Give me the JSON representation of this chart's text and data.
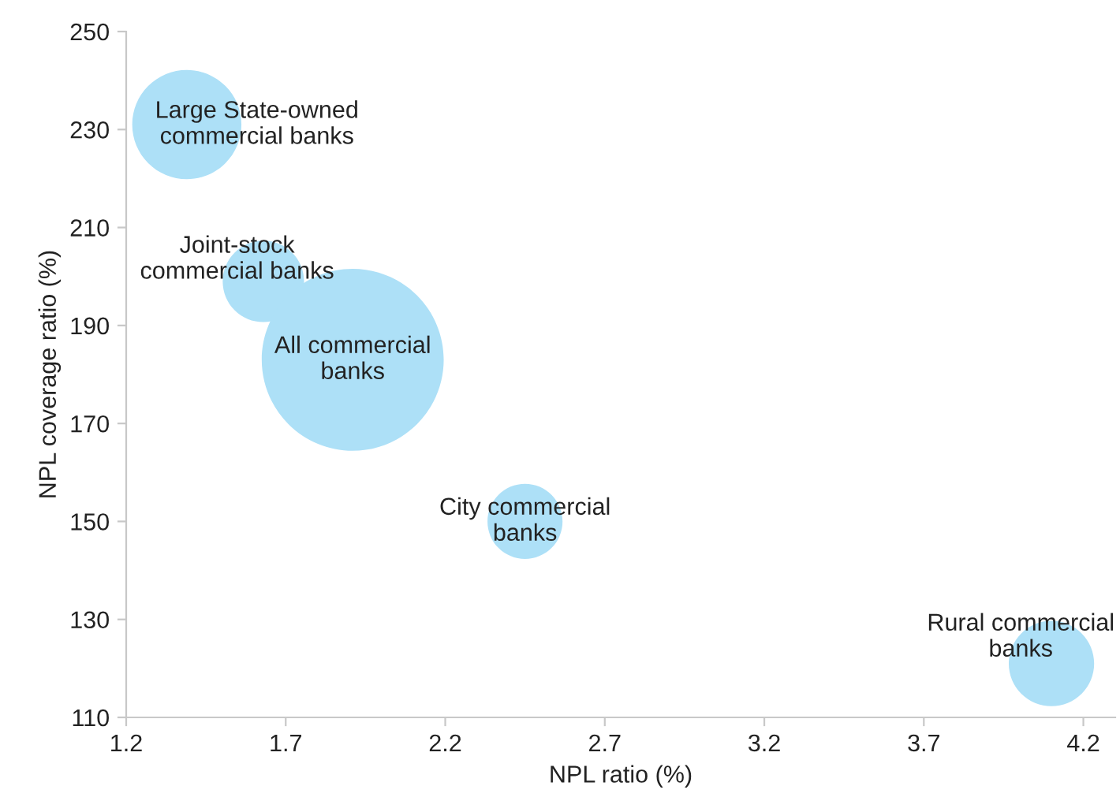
{
  "chart_data": {
    "type": "bubble",
    "xlabel": "NPL ratio (%)",
    "ylabel": "NPL coverage ratio (%)",
    "xlim": [
      1.2,
      4.3
    ],
    "xticks": [
      1.2,
      1.7,
      2.2,
      2.7,
      3.2,
      3.7,
      4.2
    ],
    "ylim": [
      110,
      250
    ],
    "yticks": [
      110,
      130,
      150,
      170,
      190,
      210,
      230,
      250
    ],
    "grid": false,
    "legend": false,
    "series": [
      {
        "name": "Large State-owned\ncommercial banks",
        "color": "#ade0f7",
        "x": [
          1.39
        ],
        "values": [
          231
        ],
        "sizes": [
          0.36
        ]
      },
      {
        "name": "Joint-stock\ncommercial banks",
        "color": "#ade0f7",
        "x": [
          1.63
        ],
        "values": [
          199
        ],
        "sizes": [
          0.2
        ]
      },
      {
        "name": "All commercial\nbanks",
        "color": "#ade0f7",
        "x": [
          1.91
        ],
        "values": [
          183
        ],
        "sizes": [
          1
        ]
      },
      {
        "name": "City commercial\nbanks",
        "color": "#ade0f7",
        "x": [
          2.45
        ],
        "values": [
          150
        ],
        "sizes": [
          0.17
        ]
      },
      {
        "name": "Rural commercial\nbanks",
        "color": "#ade0f7",
        "x": [
          4.1
        ],
        "values": [
          121
        ],
        "sizes": [
          0.22
        ]
      }
    ]
  }
}
